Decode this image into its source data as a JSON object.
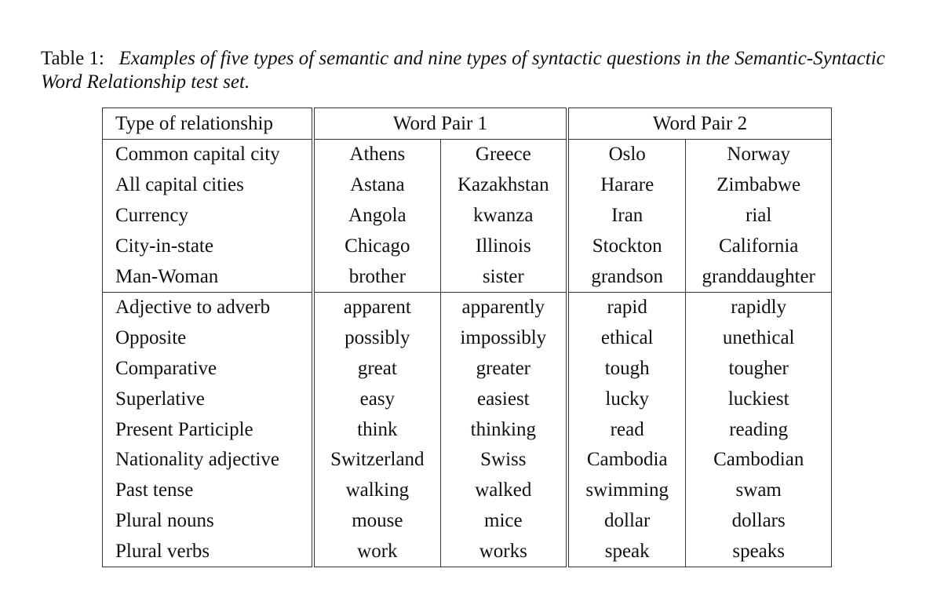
{
  "caption": {
    "label": "Table 1:",
    "text": "Examples of five types of semantic and nine types of syntactic questions in the Semantic-Syntactic Word Relationship test set."
  },
  "table": {
    "headers": [
      "Type of relationship",
      "Word Pair 1",
      "Word Pair 2"
    ],
    "semantic_rows": [
      [
        "Common capital city",
        "Athens",
        "Greece",
        "Oslo",
        "Norway"
      ],
      [
        "All capital cities",
        "Astana",
        "Kazakhstan",
        "Harare",
        "Zimbabwe"
      ],
      [
        "Currency",
        "Angola",
        "kwanza",
        "Iran",
        "rial"
      ],
      [
        "City-in-state",
        "Chicago",
        "Illinois",
        "Stockton",
        "California"
      ],
      [
        "Man-Woman",
        "brother",
        "sister",
        "grandson",
        "granddaughter"
      ]
    ],
    "syntactic_rows": [
      [
        "Adjective to adverb",
        "apparent",
        "apparently",
        "rapid",
        "rapidly"
      ],
      [
        "Opposite",
        "possibly",
        "impossibly",
        "ethical",
        "unethical"
      ],
      [
        "Comparative",
        "great",
        "greater",
        "tough",
        "tougher"
      ],
      [
        "Superlative",
        "easy",
        "easiest",
        "lucky",
        "luckiest"
      ],
      [
        "Present Participle",
        "think",
        "thinking",
        "read",
        "reading"
      ],
      [
        "Nationality adjective",
        "Switzerland",
        "Swiss",
        "Cambodia",
        "Cambodian"
      ],
      [
        "Past tense",
        "walking",
        "walked",
        "swimming",
        "swam"
      ],
      [
        "Plural nouns",
        "mouse",
        "mice",
        "dollar",
        "dollars"
      ],
      [
        "Plural verbs",
        "work",
        "works",
        "speak",
        "speaks"
      ]
    ]
  }
}
